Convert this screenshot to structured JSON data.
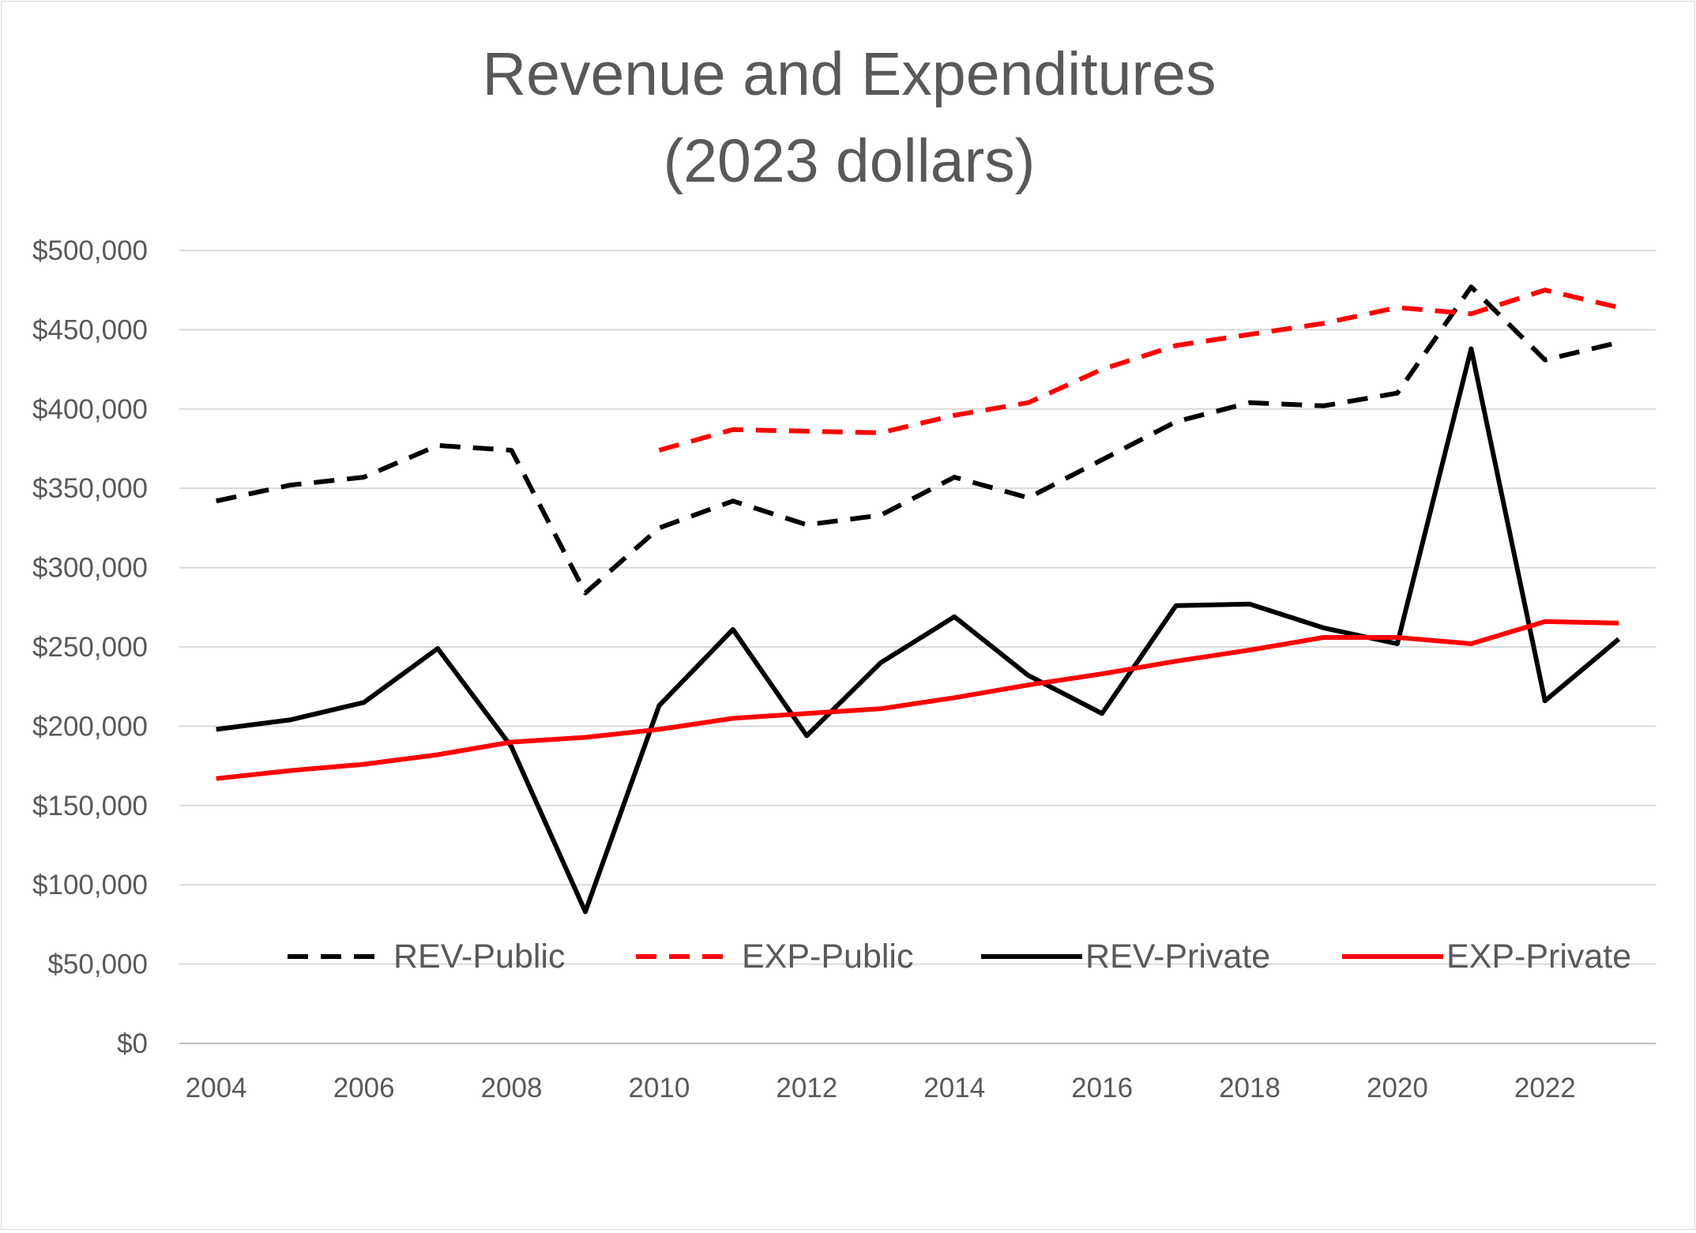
{
  "chart_data": {
    "type": "line",
    "title": [
      "Revenue and Expenditures",
      "(2023 dollars)"
    ],
    "xlabel": "",
    "ylabel": "",
    "x": [
      2004,
      2005,
      2006,
      2007,
      2008,
      2009,
      2010,
      2011,
      2012,
      2013,
      2014,
      2015,
      2016,
      2017,
      2018,
      2019,
      2020,
      2021,
      2022,
      2023
    ],
    "x_tick_labels": [
      "2004",
      "2006",
      "2008",
      "2010",
      "2012",
      "2014",
      "2016",
      "2018",
      "2020",
      "2022"
    ],
    "ylim": [
      0,
      500000
    ],
    "y_tick_labels": [
      "$0",
      "$50,000",
      "$100,000",
      "$150,000",
      "$200,000",
      "$250,000",
      "$300,000",
      "$350,000",
      "$400,000",
      "$450,000",
      "$500,000"
    ],
    "grid": true,
    "legend_position": "bottom-inside",
    "series": [
      {
        "name": "REV-Public",
        "color": "#000000",
        "dashed": true,
        "values": [
          342000,
          352000,
          357000,
          377000,
          374000,
          284000,
          325000,
          342000,
          327000,
          333000,
          357000,
          344000,
          368000,
          392000,
          404000,
          402000,
          410000,
          477000,
          431000,
          442000
        ]
      },
      {
        "name": "EXP-Public",
        "color": "#ff0000",
        "dashed": true,
        "values": [
          null,
          null,
          null,
          null,
          null,
          null,
          374000,
          387000,
          386000,
          385000,
          396000,
          404000,
          425000,
          440000,
          447000,
          454000,
          464000,
          460000,
          475000,
          464000
        ]
      },
      {
        "name": "REV-Private",
        "color": "#000000",
        "dashed": false,
        "values": [
          198000,
          204000,
          215000,
          249000,
          187000,
          83000,
          213000,
          261000,
          194000,
          240000,
          269000,
          232000,
          208000,
          276000,
          277000,
          262000,
          252000,
          438000,
          216000,
          255000
        ]
      },
      {
        "name": "EXP-Private",
        "color": "#ff0000",
        "dashed": false,
        "values": [
          167000,
          172000,
          176000,
          182000,
          190000,
          193000,
          198000,
          205000,
          208000,
          211000,
          218000,
          226000,
          233000,
          241000,
          248000,
          256000,
          256000,
          252000,
          266000,
          265000
        ]
      }
    ]
  }
}
